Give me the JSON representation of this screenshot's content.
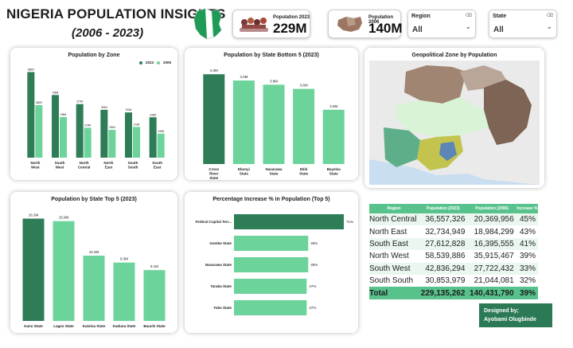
{
  "header": {
    "title": "NIGERIA POPULATION INSIGHTS",
    "subtitle": "(2006 - 2023)"
  },
  "kpis": [
    {
      "label": "Population 2023",
      "value": "229M"
    },
    {
      "label": "Population 2006",
      "value": "140M"
    }
  ],
  "slicers": [
    {
      "label": "Region",
      "value": "All"
    },
    {
      "label": "State",
      "value": "All"
    }
  ],
  "colors": {
    "dark": "#2e7d57",
    "light": "#6cd39b",
    "mid": "#56b985",
    "header": "#58c28c",
    "band": "#eaf7ef"
  },
  "zone_chart": {
    "title": "Population by Zone",
    "legend": [
      "2023",
      "2006"
    ],
    "chart_data": {
      "type": "bar",
      "categories": [
        "North West",
        "South West",
        "North Central",
        "North East",
        "South South",
        "South East"
      ],
      "series": [
        {
          "name": "2023",
          "values": [
            58.5,
            42.8,
            36.6,
            32.7,
            30.9,
            27.6
          ],
          "labels": [
            "58M",
            "43M",
            "37M",
            "33M",
            "31M",
            "28M"
          ]
        },
        {
          "name": "2006",
          "values": [
            35.9,
            27.7,
            20.4,
            19.0,
            21.0,
            16.4
          ],
          "labels": [
            "36M",
            "28M",
            "20M",
            "19M",
            "21M",
            "16M"
          ]
        }
      ]
    }
  },
  "bottom5_chart": {
    "title": "Population by State Bottom 5 (2023)",
    "chart_data": {
      "type": "bar",
      "categories": [
        "Cross River State",
        "Ebonyi State",
        "Nasarawa State",
        "Ekiti State",
        "Bayelsa State"
      ],
      "values": [
        4.3,
        4.0,
        3.8,
        3.6,
        2.6
      ],
      "labels": [
        "4.3M",
        "4.0M",
        "3.8M",
        "3.6M",
        "2.6M"
      ]
    }
  },
  "top5_chart": {
    "title": "Population by State Top 5 (2023)",
    "chart_data": {
      "type": "bar",
      "categories": [
        "Kano State",
        "Lagos State",
        "Katsina State",
        "Kaduna State",
        "Bauchi State"
      ],
      "values": [
        16.3,
        15.9,
        10.4,
        9.3,
        8.1
      ],
      "labels": [
        "16.3M",
        "15.9M",
        "10.4M",
        "9.3M",
        "8.1M"
      ]
    }
  },
  "increase_chart": {
    "title": "Percentage Increase % in Population (Top 5)",
    "chart_data": {
      "type": "bar",
      "categories": [
        "Federal Capital Terr...",
        "Gombe State",
        "Nasarawa State",
        "Taraba State",
        "Yobe State"
      ],
      "values": [
        71,
        48,
        48,
        47,
        47
      ],
      "labels": [
        "71%",
        "48%",
        "48%",
        "47%",
        "47%"
      ]
    }
  },
  "map": {
    "title": "Geopolitical Zone by Population"
  },
  "region_table": {
    "columns": [
      "Region",
      "Population (2023)",
      "Population (2006)",
      "Increase %"
    ],
    "rows": [
      [
        "North Central",
        "36,557,326",
        "20,369,956",
        "45%"
      ],
      [
        "North East",
        "32,734,949",
        "18,984,299",
        "43%"
      ],
      [
        "South East",
        "27,612,828",
        "16,395,555",
        "41%"
      ],
      [
        "North West",
        "58,539,886",
        "35,915,467",
        "39%"
      ],
      [
        "South West",
        "42,836,294",
        "27,722,432",
        "33%"
      ],
      [
        "South South",
        "30,853,979",
        "21,044,081",
        "32%"
      ]
    ],
    "total": [
      "Total",
      "229,135,262",
      "140,431,790",
      "39%"
    ]
  },
  "credit": {
    "line1": "Designed by;",
    "line2": "Ayobami Olugbinde"
  }
}
